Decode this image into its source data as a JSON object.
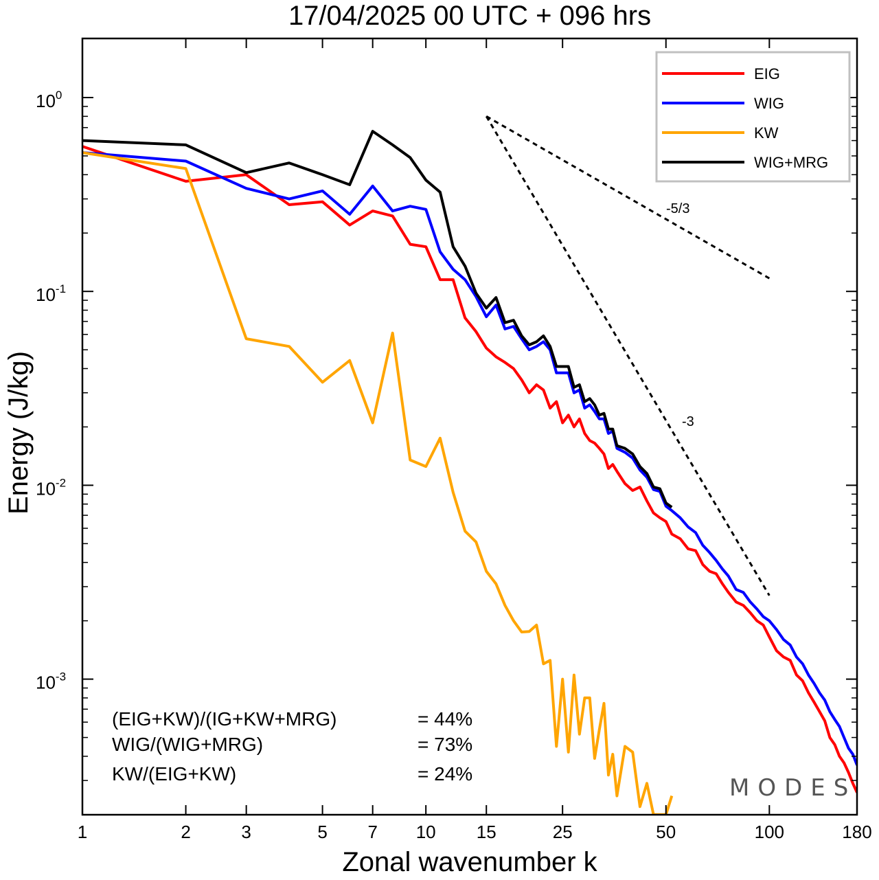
{
  "chart_data": {
    "type": "line",
    "title": "17/04/2025  00 UTC  + 096 hrs",
    "xlabel": "Zonal wavenumber k",
    "ylabel": "Energy (J/kg)",
    "xscale": "log",
    "yscale": "log",
    "xlim": [
      1,
      180
    ],
    "ylim": [
      0.00022,
      2.0
    ],
    "xticks": [
      1,
      2,
      3,
      5,
      7,
      10,
      15,
      25,
      50,
      100,
      180
    ],
    "xtick_labels": [
      "1",
      "2",
      "3",
      "5",
      "7",
      "10",
      "15",
      "25",
      "50",
      "100",
      "180"
    ],
    "yticks": [
      {
        "value": 1.0,
        "base": "10",
        "exp": "0"
      },
      {
        "value": 0.1,
        "base": "10",
        "exp": "-1"
      },
      {
        "value": 0.01,
        "base": "10",
        "exp": "-2"
      },
      {
        "value": 0.001,
        "base": "10",
        "exp": "-3"
      }
    ],
    "legend_position": "top-right",
    "grid": false,
    "series": [
      {
        "name": "EIG",
        "color": "#ff0000",
        "x": [
          1,
          2,
          3,
          4,
          5,
          6,
          7,
          8,
          9,
          10,
          11,
          12,
          13,
          14,
          15,
          16,
          17,
          18,
          19,
          20,
          21,
          22,
          23,
          24,
          25,
          26,
          27,
          28,
          29,
          30,
          31,
          32,
          33,
          34,
          35,
          36,
          38,
          40,
          42,
          44,
          46,
          48,
          50,
          52,
          55,
          58,
          61,
          64,
          67,
          70,
          73,
          76,
          80,
          84,
          88,
          92,
          96,
          100,
          105,
          110,
          115,
          120,
          125,
          130,
          135,
          140,
          145,
          150,
          155,
          160,
          165,
          170,
          175,
          180
        ],
        "y": [
          0.56,
          0.37,
          0.4,
          0.28,
          0.29,
          0.22,
          0.26,
          0.245,
          0.175,
          0.17,
          0.115,
          0.115,
          0.073,
          0.062,
          0.051,
          0.046,
          0.043,
          0.04,
          0.035,
          0.03,
          0.033,
          0.031,
          0.025,
          0.027,
          0.021,
          0.023,
          0.02,
          0.022,
          0.0185,
          0.017,
          0.0165,
          0.0155,
          0.0145,
          0.0122,
          0.0128,
          0.0118,
          0.0102,
          0.0094,
          0.0098,
          0.0083,
          0.0072,
          0.0068,
          0.0065,
          0.0056,
          0.0053,
          0.0047,
          0.0046,
          0.0039,
          0.0036,
          0.0035,
          0.0031,
          0.0028,
          0.0025,
          0.0024,
          0.0022,
          0.002,
          0.0019,
          0.00165,
          0.0014,
          0.0013,
          0.00125,
          0.00105,
          0.00098,
          0.00085,
          0.00076,
          0.00068,
          0.00061,
          0.0005,
          0.00046,
          0.0004,
          0.00037,
          0.00033,
          0.00029,
          0.00026
        ]
      },
      {
        "name": "WIG",
        "color": "#0000ff",
        "x": [
          1,
          2,
          3,
          4,
          5,
          6,
          7,
          8,
          9,
          10,
          11,
          12,
          13,
          14,
          15,
          16,
          17,
          18,
          19,
          20,
          21,
          22,
          23,
          24,
          25,
          26,
          27,
          28,
          29,
          30,
          31,
          32,
          33,
          34,
          35,
          36,
          38,
          40,
          42,
          44,
          46,
          48,
          50,
          52,
          55,
          58,
          61,
          64,
          67,
          70,
          73,
          76,
          80,
          84,
          88,
          92,
          96,
          100,
          105,
          110,
          115,
          120,
          125,
          130,
          135,
          140,
          145,
          150,
          155,
          160,
          165,
          170,
          175,
          180
        ],
        "y": [
          0.52,
          0.47,
          0.34,
          0.3,
          0.33,
          0.25,
          0.35,
          0.26,
          0.275,
          0.265,
          0.16,
          0.13,
          0.115,
          0.094,
          0.074,
          0.085,
          0.064,
          0.066,
          0.057,
          0.05,
          0.052,
          0.055,
          0.05,
          0.038,
          0.038,
          0.038,
          0.03,
          0.031,
          0.025,
          0.026,
          0.024,
          0.022,
          0.022,
          0.0185,
          0.019,
          0.0155,
          0.0148,
          0.0138,
          0.012,
          0.011,
          0.0095,
          0.0093,
          0.0078,
          0.0074,
          0.0068,
          0.0061,
          0.0057,
          0.0049,
          0.0045,
          0.0041,
          0.0037,
          0.0034,
          0.0029,
          0.0028,
          0.0025,
          0.0023,
          0.0021,
          0.002,
          0.0018,
          0.0016,
          0.0015,
          0.0013,
          0.0012,
          0.00105,
          0.00095,
          0.00085,
          0.00078,
          0.00068,
          0.00062,
          0.00057,
          0.0005,
          0.00044,
          0.00041,
          0.00036
        ]
      },
      {
        "name": "KW",
        "color": "#ffa500",
        "x": [
          1,
          2,
          3,
          4,
          5,
          6,
          7,
          8,
          9,
          10,
          11,
          12,
          13,
          14,
          15,
          16,
          17,
          18,
          19,
          20,
          21,
          22,
          23,
          24,
          25,
          26,
          27,
          28,
          29,
          30,
          31,
          32,
          33,
          34,
          35,
          36,
          38,
          40,
          42,
          44,
          46,
          48,
          50,
          52
        ],
        "y": [
          0.52,
          0.43,
          0.057,
          0.052,
          0.034,
          0.044,
          0.021,
          0.061,
          0.0135,
          0.0125,
          0.0175,
          0.0092,
          0.0058,
          0.0051,
          0.0036,
          0.0031,
          0.0024,
          0.002,
          0.00175,
          0.00176,
          0.0019,
          0.0012,
          0.00125,
          0.00045,
          0.001,
          0.00042,
          0.00105,
          0.00052,
          0.0008,
          0.0008,
          0.00039,
          0.00055,
          0.00075,
          0.00032,
          0.00041,
          0.00025,
          0.00045,
          0.00042,
          0.00022,
          0.00029,
          0.0002,
          0.0002,
          0.0002,
          0.00025
        ]
      },
      {
        "name": "WIG+MRG",
        "color": "#000000",
        "x": [
          1,
          2,
          3,
          4,
          5,
          6,
          7,
          8,
          9,
          10,
          11,
          12,
          13,
          14,
          15,
          16,
          17,
          18,
          19,
          20,
          21,
          22,
          23,
          24,
          25,
          26,
          27,
          28,
          29,
          30,
          31,
          32,
          33,
          34,
          35,
          36,
          38,
          40,
          42,
          44,
          46,
          48,
          50,
          52
        ],
        "y": [
          0.6,
          0.57,
          0.41,
          0.46,
          0.4,
          0.355,
          0.67,
          0.57,
          0.49,
          0.375,
          0.325,
          0.17,
          0.135,
          0.098,
          0.082,
          0.093,
          0.069,
          0.071,
          0.059,
          0.053,
          0.055,
          0.059,
          0.052,
          0.041,
          0.041,
          0.041,
          0.032,
          0.033,
          0.027,
          0.028,
          0.026,
          0.023,
          0.0235,
          0.0195,
          0.0195,
          0.016,
          0.0155,
          0.0145,
          0.0125,
          0.0115,
          0.0098,
          0.0096,
          0.0081,
          0.0077
        ]
      }
    ],
    "reference_lines": [
      {
        "label": "-5/3",
        "x": [
          15,
          100
        ],
        "y": [
          0.8,
          0.1168
        ]
      },
      {
        "label": "-3",
        "x": [
          15,
          100
        ],
        "y": [
          0.8,
          0.0027
        ]
      }
    ],
    "annotations": [
      {
        "label": "(EIG+KW)/(IG+KW+MRG)",
        "value": "= 44%"
      },
      {
        "label": "WIG/(WIG+MRG)",
        "value": "= 73%"
      },
      {
        "label": "KW/(EIG+KW)",
        "value": "= 24%"
      }
    ]
  },
  "watermark": "MODES"
}
